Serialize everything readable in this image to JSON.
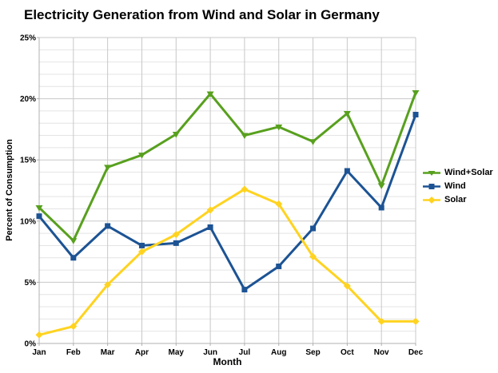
{
  "chart_data": {
    "type": "line",
    "title": "Electricity Generation from Wind and Solar in Germany",
    "xlabel": "Month",
    "ylabel": "Percent of Consumption",
    "ylim": [
      0,
      25
    ],
    "y_major_step": 5,
    "y_minor_step": 1,
    "grid": "on",
    "legend_position": "right",
    "y_ticks": {
      "labels": [
        "0%",
        "5%",
        "10%",
        "15%",
        "20%",
        "25%"
      ],
      "values": [
        0,
        5,
        10,
        15,
        20,
        25
      ]
    },
    "categories": [
      "Jan",
      "Feb",
      "Mar",
      "Apr",
      "May",
      "Jun",
      "Jul",
      "Aug",
      "Sep",
      "Oct",
      "Nov",
      "Dec"
    ],
    "series": [
      {
        "name": "Wind+Solar",
        "color": "#58A01E",
        "marker": "triangle-down",
        "values": [
          11.1,
          8.4,
          14.4,
          15.4,
          17.1,
          20.4,
          17.0,
          17.7,
          16.5,
          18.8,
          12.9,
          20.5
        ]
      },
      {
        "name": "Wind",
        "color": "#1C5394",
        "marker": "square",
        "values": [
          10.4,
          7.0,
          9.6,
          8.0,
          8.2,
          9.5,
          4.4,
          6.3,
          9.4,
          14.1,
          11.1,
          18.7
        ]
      },
      {
        "name": "Solar",
        "color": "#FFD320",
        "marker": "diamond",
        "values": [
          0.7,
          1.4,
          4.8,
          7.5,
          8.9,
          10.9,
          12.6,
          11.4,
          7.1,
          4.7,
          1.8,
          1.8
        ]
      }
    ],
    "colors": {
      "background": "#FFFFFF",
      "text": "#000000",
      "grid_major": "#C8C8C8",
      "grid_minor": "#E4E4E4",
      "axis": "#B0B0B0"
    }
  }
}
